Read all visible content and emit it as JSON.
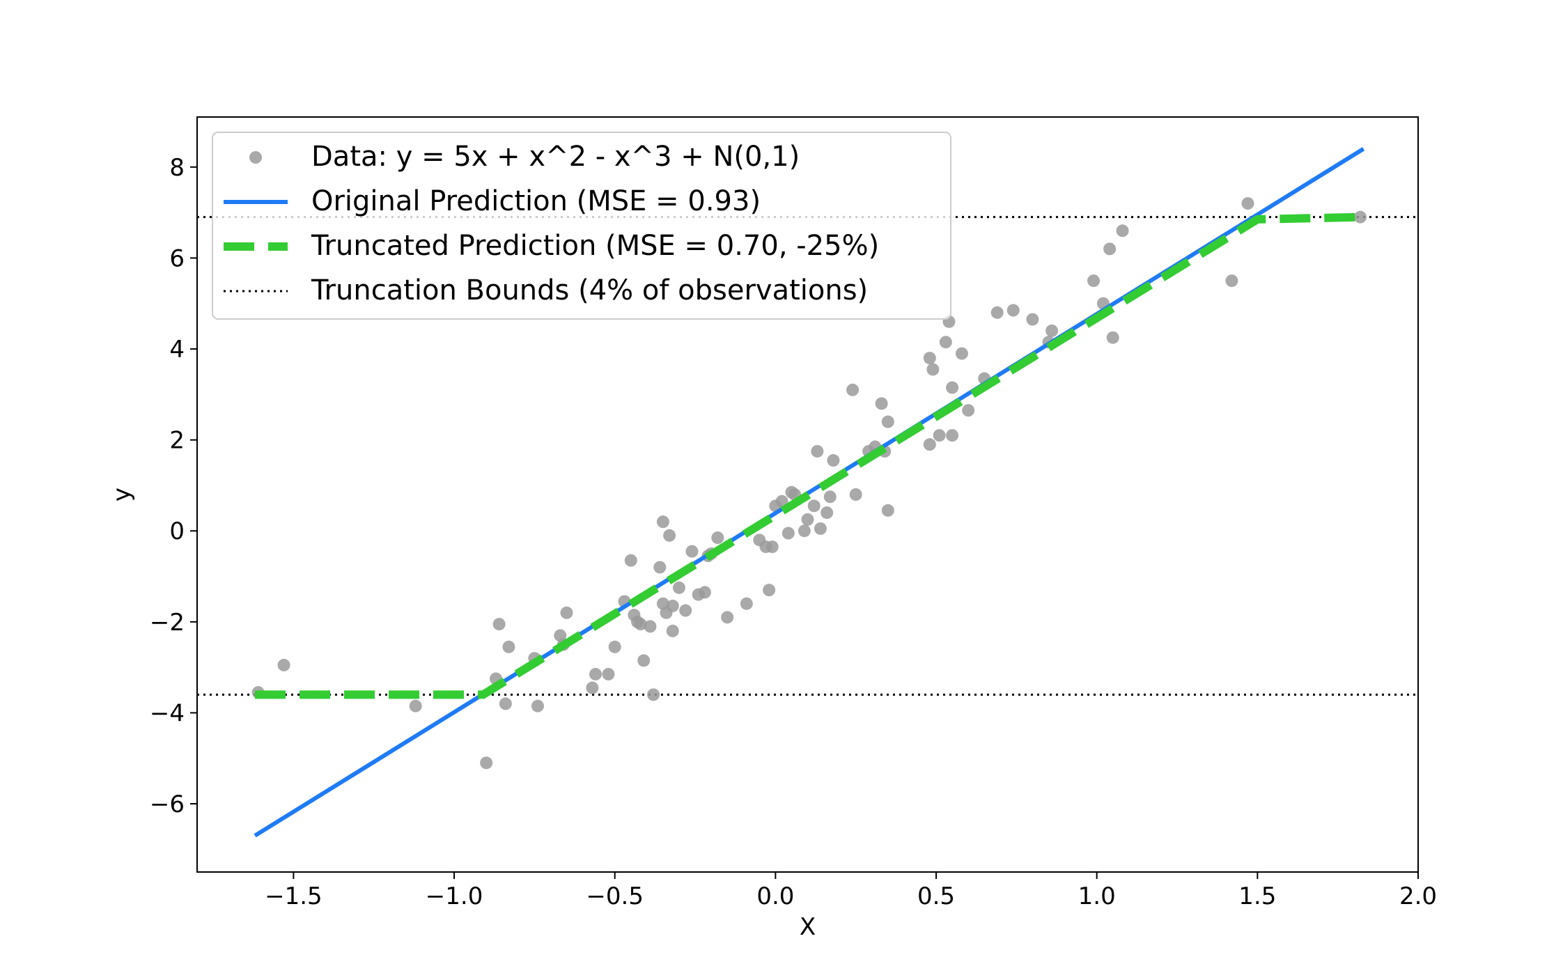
{
  "chart_data": {
    "type": "scatter",
    "xlabel": "X",
    "ylabel": "y",
    "xlim": [
      -1.8,
      2.0
    ],
    "ylim": [
      -7.5,
      9.1
    ],
    "xticks": [
      -1.5,
      -1.0,
      -0.5,
      0.0,
      0.5,
      1.0,
      1.5,
      2.0
    ],
    "xtick_labels": [
      "−1.5",
      "−1.0",
      "−0.5",
      "0.0",
      "0.5",
      "1.0",
      "1.5",
      "2.0"
    ],
    "yticks": [
      -6,
      -4,
      -2,
      0,
      2,
      4,
      6,
      8
    ],
    "ytick_labels": [
      "−6",
      "−4",
      "−2",
      "0",
      "2",
      "4",
      "6",
      "8"
    ],
    "grid": false,
    "legend_position": "upper-left",
    "colors": {
      "data": "#9a9a9a",
      "original": "#1f7bf5",
      "truncated": "#33cc33",
      "bounds": "#000000"
    },
    "series": [
      {
        "name": "Data: y = 5x + x^2 - x^3 + N(0,1)",
        "kind": "scatter",
        "points": [
          [
            -1.61,
            -3.55
          ],
          [
            -1.53,
            -2.95
          ],
          [
            -1.12,
            -3.85
          ],
          [
            -0.9,
            -5.1
          ],
          [
            -0.87,
            -3.25
          ],
          [
            -0.86,
            -2.05
          ],
          [
            -0.84,
            -3.8
          ],
          [
            -0.83,
            -2.55
          ],
          [
            -0.75,
            -2.8
          ],
          [
            -0.74,
            -3.85
          ],
          [
            -0.67,
            -2.3
          ],
          [
            -0.66,
            -2.5
          ],
          [
            -0.65,
            -1.8
          ],
          [
            -0.57,
            -3.45
          ],
          [
            -0.56,
            -3.15
          ],
          [
            -0.52,
            -3.15
          ],
          [
            -0.5,
            -2.55
          ],
          [
            -0.47,
            -1.55
          ],
          [
            -0.45,
            -0.65
          ],
          [
            -0.44,
            -1.85
          ],
          [
            -0.43,
            -2.0
          ],
          [
            -0.42,
            -2.05
          ],
          [
            -0.41,
            -2.85
          ],
          [
            -0.39,
            -2.1
          ],
          [
            -0.38,
            -3.6
          ],
          [
            -0.36,
            -0.8
          ],
          [
            -0.35,
            0.2
          ],
          [
            -0.35,
            -1.6
          ],
          [
            -0.34,
            -1.8
          ],
          [
            -0.33,
            -0.1
          ],
          [
            -0.32,
            -2.2
          ],
          [
            -0.32,
            -1.65
          ],
          [
            -0.3,
            -1.25
          ],
          [
            -0.28,
            -1.75
          ],
          [
            -0.26,
            -0.45
          ],
          [
            -0.24,
            -1.4
          ],
          [
            -0.22,
            -1.35
          ],
          [
            -0.21,
            -0.55
          ],
          [
            -0.2,
            -0.5
          ],
          [
            -0.18,
            -0.15
          ],
          [
            -0.15,
            -1.9
          ],
          [
            -0.09,
            -1.6
          ],
          [
            -0.05,
            -0.2
          ],
          [
            -0.03,
            -0.35
          ],
          [
            -0.02,
            -1.3
          ],
          [
            -0.01,
            -0.35
          ],
          [
            0.0,
            0.55
          ],
          [
            0.02,
            0.65
          ],
          [
            0.04,
            -0.05
          ],
          [
            0.05,
            0.85
          ],
          [
            0.06,
            0.8
          ],
          [
            0.09,
            0.0
          ],
          [
            0.1,
            0.25
          ],
          [
            0.12,
            0.55
          ],
          [
            0.13,
            1.75
          ],
          [
            0.14,
            0.05
          ],
          [
            0.16,
            0.4
          ],
          [
            0.17,
            0.75
          ],
          [
            0.18,
            1.55
          ],
          [
            0.24,
            3.1
          ],
          [
            0.25,
            0.8
          ],
          [
            0.29,
            1.75
          ],
          [
            0.31,
            1.85
          ],
          [
            0.33,
            2.8
          ],
          [
            0.34,
            1.75
          ],
          [
            0.35,
            2.4
          ],
          [
            0.35,
            0.45
          ],
          [
            0.48,
            3.8
          ],
          [
            0.48,
            1.9
          ],
          [
            0.49,
            3.55
          ],
          [
            0.51,
            2.1
          ],
          [
            0.53,
            4.15
          ],
          [
            0.54,
            4.6
          ],
          [
            0.55,
            3.15
          ],
          [
            0.55,
            2.1
          ],
          [
            0.58,
            3.9
          ],
          [
            0.6,
            2.65
          ],
          [
            0.65,
            3.35
          ],
          [
            0.69,
            4.8
          ],
          [
            0.74,
            4.85
          ],
          [
            0.8,
            4.65
          ],
          [
            0.85,
            4.15
          ],
          [
            0.86,
            4.4
          ],
          [
            0.99,
            5.5
          ],
          [
            1.02,
            5.0
          ],
          [
            1.04,
            6.2
          ],
          [
            1.05,
            4.25
          ],
          [
            1.08,
            6.6
          ],
          [
            1.42,
            5.5
          ],
          [
            1.47,
            7.2
          ],
          [
            1.82,
            6.9
          ]
        ]
      },
      {
        "name": "Original Prediction (MSE = 0.93)",
        "kind": "line",
        "points": [
          [
            -1.62,
            -6.7
          ],
          [
            1.83,
            8.4
          ]
        ]
      },
      {
        "name": "Truncated Prediction (MSE = 0.70, -25%)",
        "kind": "dashed-line",
        "points": [
          [
            -1.62,
            -3.6
          ],
          [
            -0.91,
            -3.6
          ],
          [
            1.5,
            6.85
          ],
          [
            1.83,
            6.9
          ]
        ]
      },
      {
        "name": "Truncation Bounds (4% of observations)",
        "kind": "hlines-dotted",
        "values": [
          6.9,
          -3.6
        ]
      }
    ]
  }
}
